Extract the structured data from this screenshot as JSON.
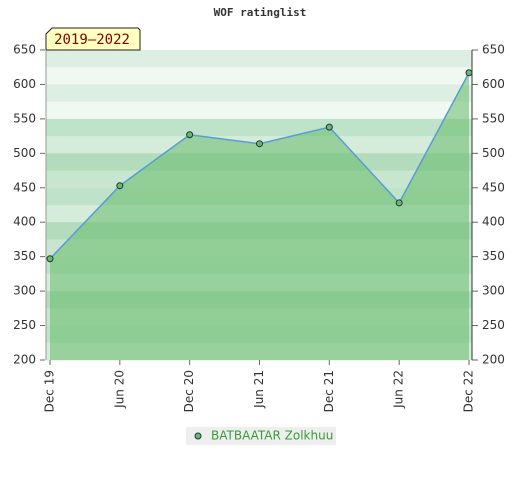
{
  "chart_data": {
    "type": "line",
    "title": "WOF ratinglist",
    "annotation": "2019–2022",
    "categories": [
      "Dec 19",
      "Jun 20",
      "Dec 20",
      "Jun 21",
      "Dec 21",
      "Jun 22",
      "Dec 22"
    ],
    "series": [
      {
        "name": "BATBAATAR Zolkhuu",
        "color": "#66bb6a",
        "values": [
          347,
          453,
          527,
          514,
          538,
          428,
          617
        ]
      }
    ],
    "ylim": [
      200,
      650
    ],
    "yticks": [
      200,
      250,
      300,
      350,
      400,
      450,
      500,
      550,
      600,
      650
    ],
    "y2lim": [
      200,
      650
    ],
    "y2ticks": [
      200,
      250,
      300,
      350,
      400,
      450,
      500,
      550,
      600,
      650
    ],
    "legend": "bottom"
  }
}
